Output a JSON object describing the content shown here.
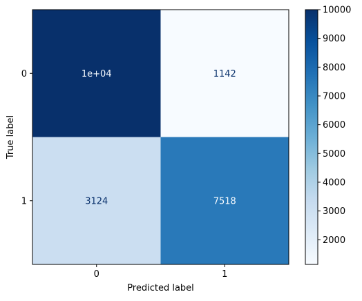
{
  "chart_data": {
    "type": "heatmap",
    "title": "",
    "xlabel": "Predicted label",
    "ylabel": "True label",
    "x_categories": [
      "0",
      "1"
    ],
    "y_categories": [
      "0",
      "1"
    ],
    "values": [
      [
        10000,
        1142
      ],
      [
        3124,
        7518
      ]
    ],
    "cell_labels": [
      [
        "1e+04",
        "1142"
      ],
      [
        "3124",
        "7518"
      ]
    ],
    "colormap": "Blues",
    "colorbar": {
      "range": [
        1142,
        10000
      ],
      "ticks": [
        2000,
        3000,
        4000,
        5000,
        6000,
        7000,
        8000,
        9000,
        10000
      ],
      "tick_labels": [
        "2000",
        "3000",
        "4000",
        "5000",
        "6000",
        "7000",
        "8000",
        "9000",
        "10000"
      ]
    },
    "colors": {
      "low": "#f7fbff",
      "high": "#08306b",
      "text_dark_bg": "#f7fbff",
      "text_light_bg": "#08306b"
    }
  }
}
